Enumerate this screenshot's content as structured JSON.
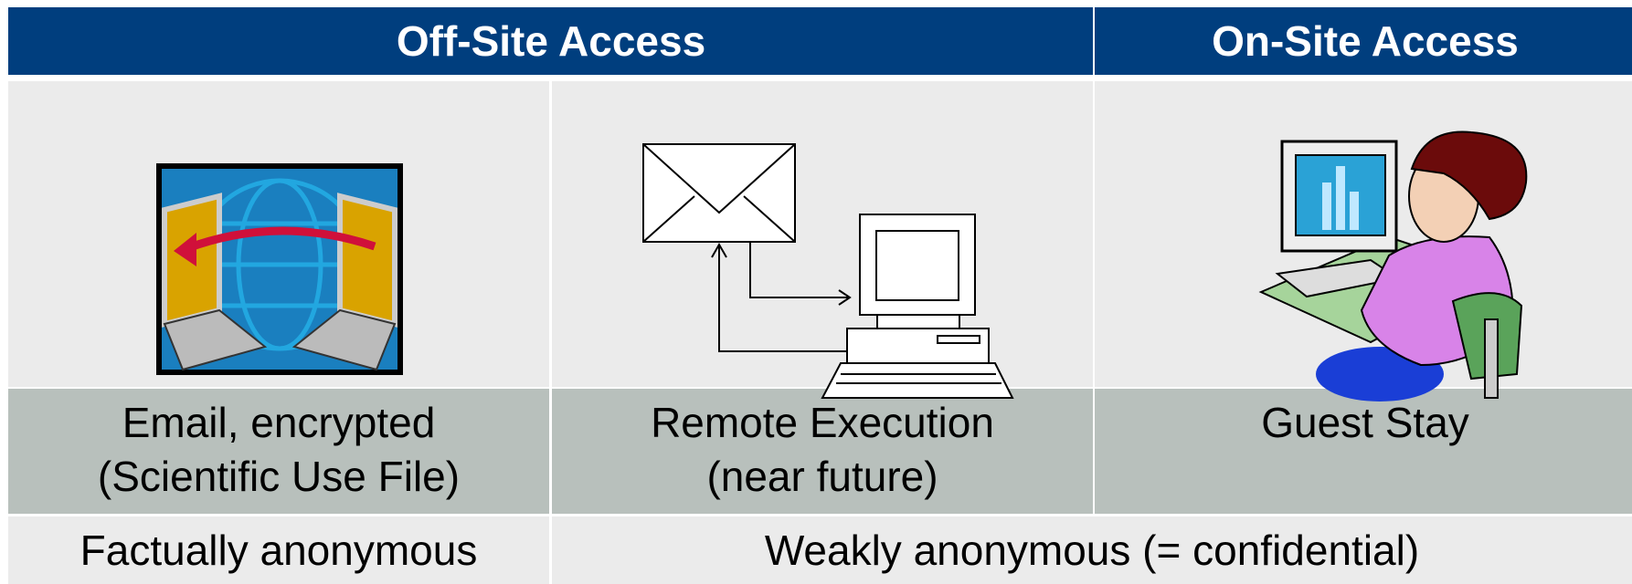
{
  "header": {
    "columns": [
      "Off-Site Access",
      "On-Site Access"
    ]
  },
  "methods": [
    {
      "label_lines": [
        "Email, encrypted",
        "(Scientific Use File)"
      ]
    },
    {
      "label_lines": [
        "Remote Execution",
        "(near future)"
      ]
    },
    {
      "label_lines": [
        "Guest Stay"
      ]
    }
  ],
  "anonymity": [
    "Factually anonymous",
    "Weakly anonymous (= confidential)"
  ]
}
